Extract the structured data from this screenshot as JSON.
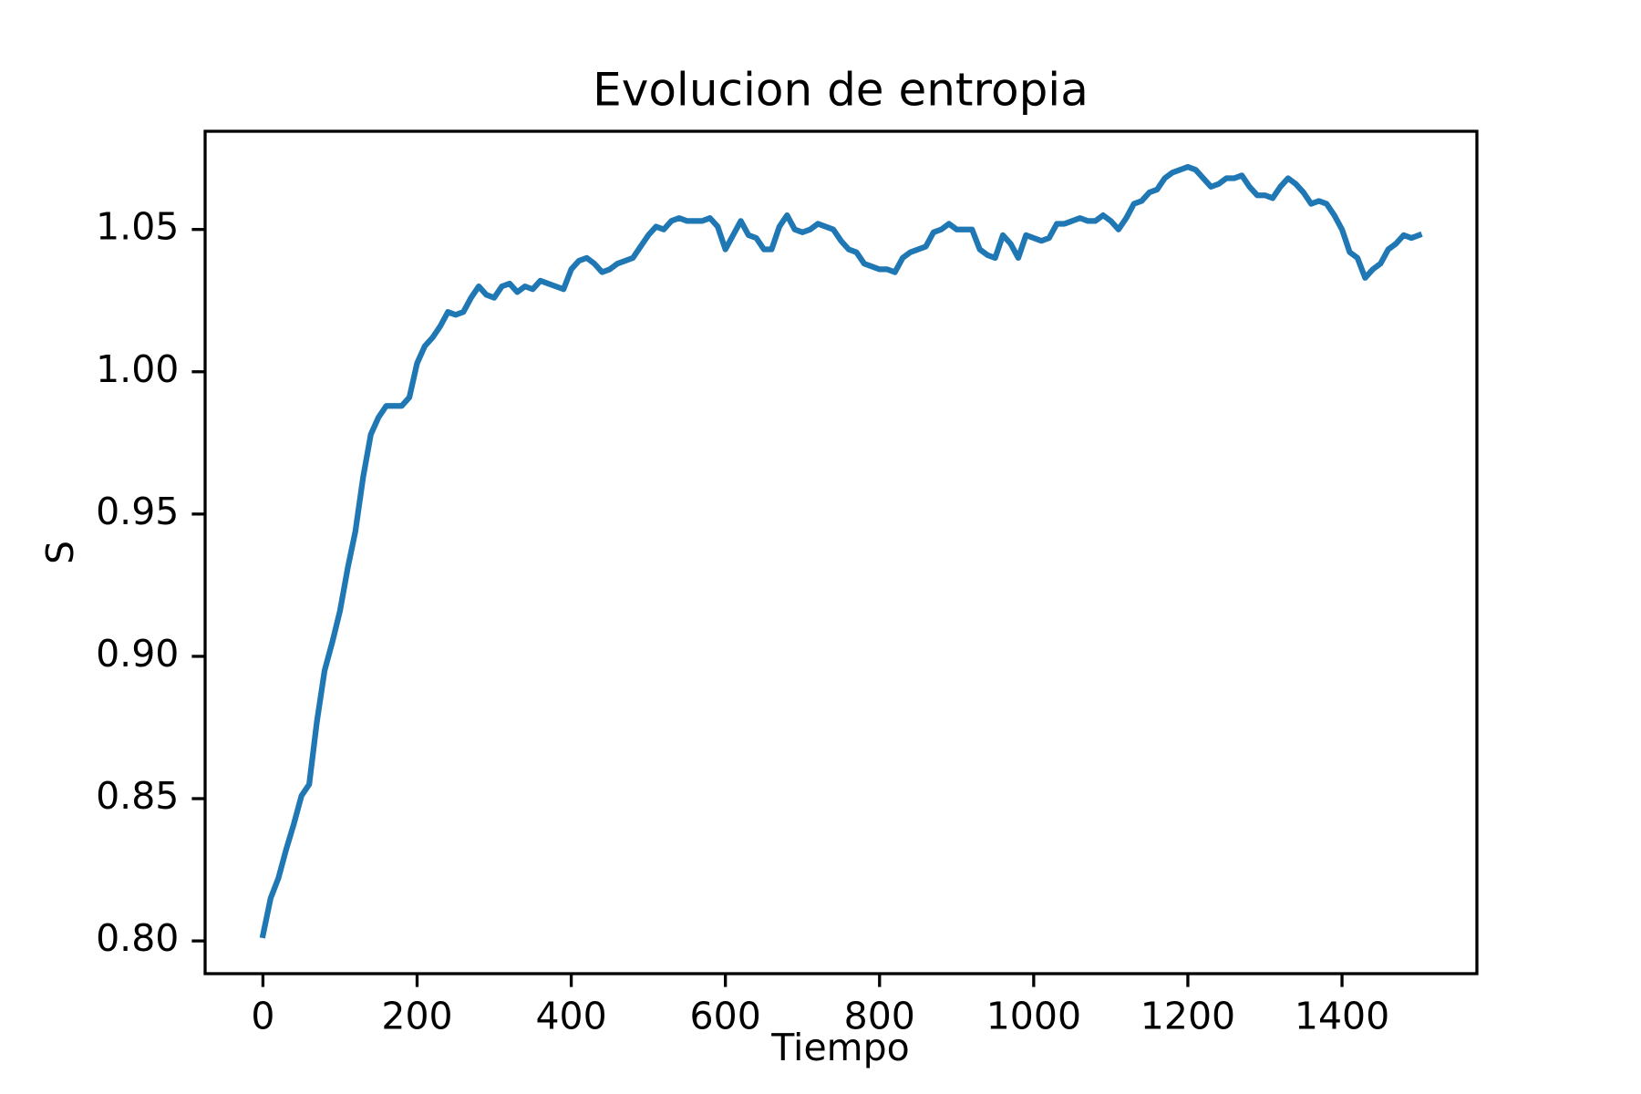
{
  "chart_data": {
    "type": "line",
    "title": "Evolucion de entropia",
    "x_label": "Tiempo",
    "y_label": "S",
    "x": [
      0,
      10,
      20,
      30,
      40,
      50,
      60,
      70,
      80,
      90,
      100,
      110,
      120,
      130,
      140,
      150,
      160,
      170,
      180,
      190,
      200,
      210,
      220,
      230,
      240,
      250,
      260,
      270,
      280,
      290,
      300,
      310,
      320,
      330,
      340,
      350,
      360,
      370,
      380,
      390,
      400,
      410,
      420,
      430,
      440,
      450,
      460,
      470,
      480,
      490,
      500,
      510,
      520,
      530,
      540,
      550,
      560,
      570,
      580,
      590,
      600,
      610,
      620,
      630,
      640,
      650,
      660,
      670,
      680,
      690,
      700,
      710,
      720,
      730,
      740,
      750,
      760,
      770,
      780,
      790,
      800,
      810,
      820,
      830,
      840,
      850,
      860,
      870,
      880,
      890,
      900,
      910,
      920,
      930,
      940,
      950,
      960,
      970,
      980,
      990,
      1000,
      1010,
      1020,
      1030,
      1040,
      1050,
      1060,
      1070,
      1080,
      1090,
      1100,
      1110,
      1120,
      1130,
      1140,
      1150,
      1160,
      1170,
      1180,
      1190,
      1200,
      1210,
      1220,
      1230,
      1240,
      1250,
      1260,
      1270,
      1280,
      1290,
      1300,
      1310,
      1320,
      1330,
      1340,
      1350,
      1360,
      1370,
      1380,
      1390,
      1400,
      1410,
      1420,
      1430,
      1440,
      1450,
      1460,
      1470,
      1480,
      1490,
      1500
    ],
    "values": [
      0.802,
      0.815,
      0.822,
      0.832,
      0.841,
      0.851,
      0.855,
      0.877,
      0.895,
      0.905,
      0.916,
      0.931,
      0.944,
      0.963,
      0.978,
      0.984,
      0.988,
      0.988,
      0.988,
      0.991,
      1.003,
      1.009,
      1.012,
      1.016,
      1.021,
      1.02,
      1.021,
      1.026,
      1.03,
      1.027,
      1.026,
      1.03,
      1.031,
      1.028,
      1.03,
      1.029,
      1.032,
      1.031,
      1.03,
      1.029,
      1.036,
      1.039,
      1.04,
      1.038,
      1.035,
      1.036,
      1.038,
      1.039,
      1.04,
      1.044,
      1.048,
      1.051,
      1.05,
      1.053,
      1.054,
      1.053,
      1.053,
      1.053,
      1.054,
      1.051,
      1.043,
      1.048,
      1.053,
      1.048,
      1.047,
      1.043,
      1.043,
      1.051,
      1.055,
      1.05,
      1.049,
      1.05,
      1.052,
      1.051,
      1.05,
      1.046,
      1.043,
      1.042,
      1.038,
      1.037,
      1.036,
      1.036,
      1.035,
      1.04,
      1.042,
      1.043,
      1.044,
      1.049,
      1.05,
      1.052,
      1.05,
      1.05,
      1.05,
      1.043,
      1.041,
      1.04,
      1.048,
      1.045,
      1.04,
      1.048,
      1.047,
      1.046,
      1.047,
      1.052,
      1.052,
      1.053,
      1.054,
      1.053,
      1.053,
      1.055,
      1.053,
      1.05,
      1.054,
      1.059,
      1.06,
      1.063,
      1.064,
      1.068,
      1.07,
      1.071,
      1.072,
      1.071,
      1.068,
      1.065,
      1.066,
      1.068,
      1.068,
      1.069,
      1.065,
      1.062,
      1.062,
      1.061,
      1.065,
      1.068,
      1.066,
      1.063,
      1.059,
      1.06,
      1.059,
      1.055,
      1.05,
      1.042,
      1.04,
      1.033,
      1.036,
      1.038,
      1.043,
      1.045,
      1.048,
      1.047,
      1.048
    ],
    "color": "#1f77b4",
    "xlim": [
      -75,
      1575
    ],
    "xticks": [
      0,
      200,
      400,
      600,
      800,
      1000,
      1200,
      1400
    ],
    "ylim": [
      0.7885,
      1.0845
    ],
    "yticks": [
      {
        "value": 0.8,
        "label": "0.80"
      },
      0.85,
      {
        "value": 0.9,
        "label": "0.90"
      },
      0.95,
      {
        "value": 1.0,
        "label": "1.00"
      },
      1.05
    ]
  }
}
